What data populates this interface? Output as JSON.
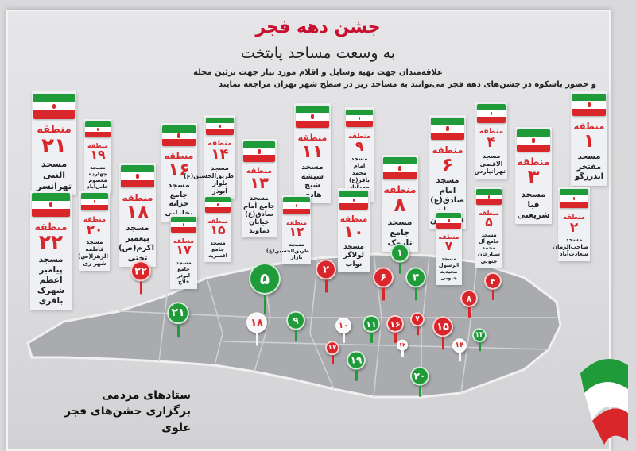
{
  "header": {
    "title": "جشن دهه فجر",
    "subtitle": "به وسعت مساجد پایتخت",
    "line1": "علاقه‌مندان جهت تهیه وسایل و اقلام مورد نیاز جهت تزئین محله",
    "line2": "و حضور باشکوه در جشن‌های دهه فجر می‌توانند به مساجد زیر در سطح شهر تهران مراجعه نمایند"
  },
  "zone_label": "منطقه",
  "zones": [
    {
      "number": "۲۱",
      "mosque": "مسجد النبی تهرانسر"
    },
    {
      "number": "۱۹",
      "mosque": "مسجد چهارده معصوم خانی‌آباد"
    },
    {
      "number": "۱۶",
      "mosque": "مسجد جامع خزانه بخارایی"
    },
    {
      "number": "۱۴",
      "mosque": "مسجد طریق‌الحسین(ع) بلوار ابوذر"
    },
    {
      "number": "۱۳",
      "mosque": "مسجد جامع امام صادق(ع) خیابان دماوند"
    },
    {
      "number": "۱۱",
      "mosque": "مسجد شیشه شیخ هادی"
    },
    {
      "number": "۹",
      "mosque": "مسجد امام محمد باقر(ع) مهرآباد جنوبی"
    },
    {
      "number": "۸",
      "mosque": "مسجد جامع نارمک"
    },
    {
      "number": "۶",
      "mosque": "مسجد امام صادق(ع) میدان فلسطین"
    },
    {
      "number": "۴",
      "mosque": "مسجد الاقصی تهرانپارس"
    },
    {
      "number": "۳",
      "mosque": "مسجد قبا شریعتی"
    },
    {
      "number": "۱",
      "mosque": "مسجد مفتخر اندرزگو"
    },
    {
      "number": "۲",
      "mosque": "مسجد صاحب‌الزمان سعادت‌آباد"
    },
    {
      "number": "۵",
      "mosque": "مسجد جامع آل محمد ستارخان جنوبی"
    },
    {
      "number": "۷",
      "mosque": "مسجد الرسول مجیدیه جنوبی"
    },
    {
      "number": "۱۰",
      "mosque": "مسجد لولاگر نواب"
    },
    {
      "number": "۱۲",
      "mosque": "مسجد طریق‌الحسین(ع) بازار"
    },
    {
      "number": "۱۵",
      "mosque": "مسجد جامع اقسریه"
    },
    {
      "number": "۱۷",
      "mosque": "مسجد جامع ابوذر فلاح"
    },
    {
      "number": "۱۸",
      "mosque": "مسجد پیغمبر اکرم(ص) تختی"
    },
    {
      "number": "۲۰",
      "mosque": "مسجد فاطمه الزهرا(س) شهر ری"
    },
    {
      "number": "۲۲",
      "mosque": "مسجد پیامبر اعظم شهرک باقری"
    }
  ],
  "pins": [
    {
      "label": "۲۲",
      "color": "red"
    },
    {
      "label": "۵",
      "color": "green"
    },
    {
      "label": "۲",
      "color": "red"
    },
    {
      "label": "۶",
      "color": "red"
    },
    {
      "label": "۱",
      "color": "green"
    },
    {
      "label": "۳",
      "color": "green"
    },
    {
      "label": "۴",
      "color": "red"
    },
    {
      "label": "۸",
      "color": "red"
    },
    {
      "label": "۲۱",
      "color": "green"
    },
    {
      "label": "۱۸",
      "color": "white"
    },
    {
      "label": "۹",
      "color": "green"
    },
    {
      "label": "۱۰",
      "color": "white"
    },
    {
      "label": "۱۱",
      "color": "green"
    },
    {
      "label": "۱۶",
      "color": "red"
    },
    {
      "label": "۷",
      "color": "red"
    },
    {
      "label": "۱۵",
      "color": "red"
    },
    {
      "label": "۱۳",
      "color": "green"
    },
    {
      "label": "۱۷",
      "color": "red"
    },
    {
      "label": "۱۲",
      "color": "white"
    },
    {
      "label": "۱۴",
      "color": "white"
    },
    {
      "label": "۱۹",
      "color": "green"
    },
    {
      "label": "۲۰",
      "color": "green"
    }
  ],
  "colors": {
    "red": "#d8262b",
    "green": "#1f9b3a",
    "white": "#f7f7f7",
    "title": "#c8102e"
  },
  "footer": {
    "line1": "ستادهای مردمی",
    "line2": "برگزاری جشن‌های فجر علوی"
  }
}
